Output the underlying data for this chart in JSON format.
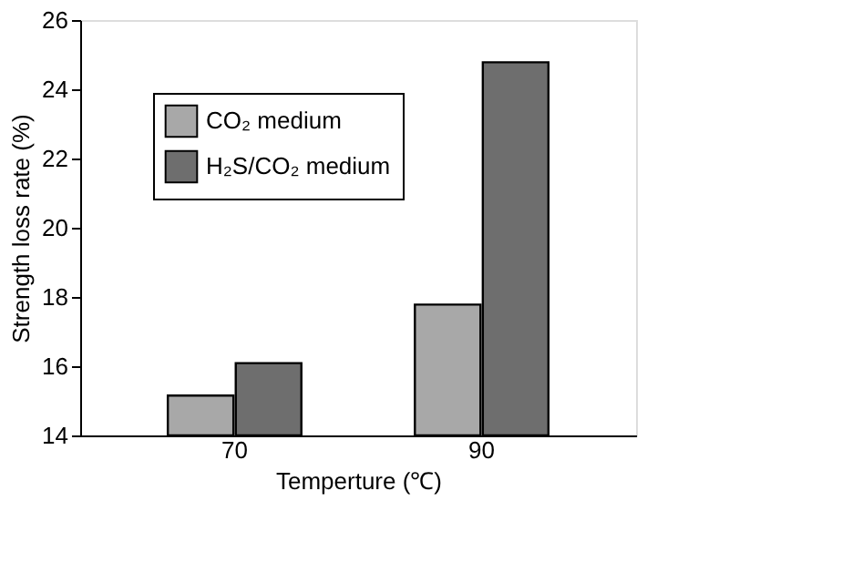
{
  "chart_data": {
    "type": "bar",
    "xlabel": "Temperture (℃)",
    "ylabel": "Strength loss rate (%)",
    "categories": [
      "70",
      "90"
    ],
    "series": [
      {
        "name": "CO₂ medium",
        "color": "#a8a8a8",
        "values": [
          15.15,
          17.78
        ]
      },
      {
        "name": "H₂S/CO₂ medium",
        "color": "#6e6e6e",
        "values": [
          16.09,
          24.78
        ]
      }
    ],
    "ylim": [
      14,
      26
    ],
    "yticks": [
      14,
      16,
      18,
      20,
      22,
      24,
      26
    ],
    "grid": false,
    "legend": "top left"
  }
}
